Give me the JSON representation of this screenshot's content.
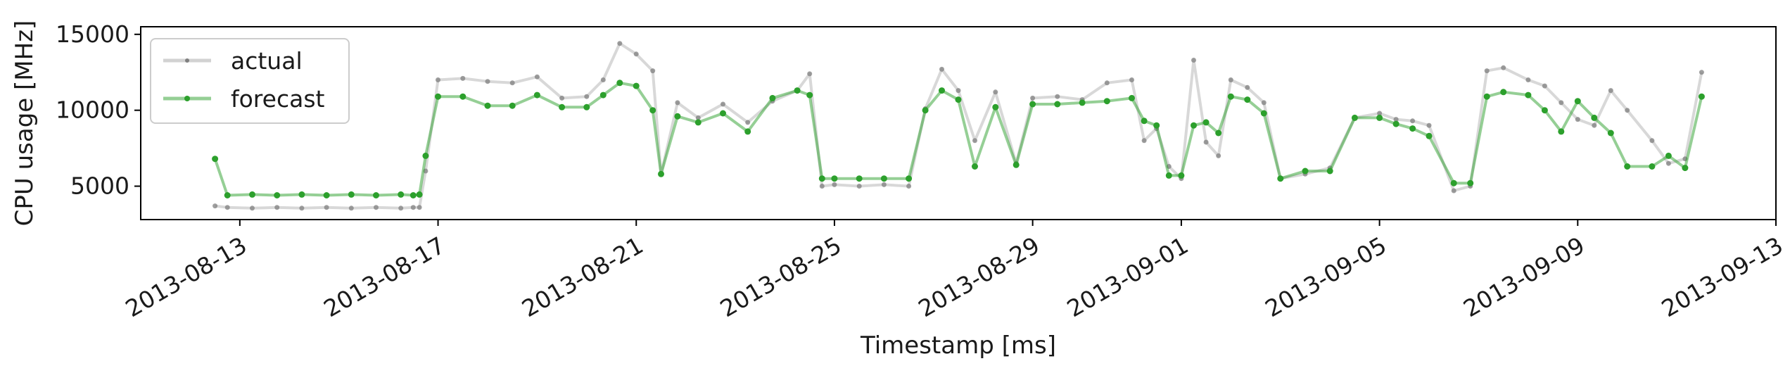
{
  "chart_data": {
    "type": "line",
    "title": "",
    "xlabel": "Timestamp [ms]",
    "ylabel": "CPU usage [MHz]",
    "x_type": "date",
    "xlim": [
      "2013-08-11",
      "2013-09-13"
    ],
    "ylim": [
      2800,
      15500
    ],
    "x_ticks": [
      "2013-08-13",
      "2013-08-17",
      "2013-08-21",
      "2013-08-25",
      "2013-08-29",
      "2013-09-01",
      "2013-09-05",
      "2013-09-09",
      "2013-09-13"
    ],
    "y_ticks": [
      5000,
      10000,
      15000
    ],
    "grid": false,
    "legend_position": "top-left",
    "series": [
      {
        "name": "actual",
        "color": "#7f7f7f",
        "x": [
          "2013-08-12 12:00",
          "2013-08-12 18:00",
          "2013-08-13 06:00",
          "2013-08-13 18:00",
          "2013-08-14 06:00",
          "2013-08-14 18:00",
          "2013-08-15 06:00",
          "2013-08-15 18:00",
          "2013-08-16 06:00",
          "2013-08-16 12:00",
          "2013-08-16 15:00",
          "2013-08-16 18:00",
          "2013-08-17 00:00",
          "2013-08-17 12:00",
          "2013-08-18 00:00",
          "2013-08-18 12:00",
          "2013-08-19 00:00",
          "2013-08-19 12:00",
          "2013-08-20 00:00",
          "2013-08-20 08:00",
          "2013-08-20 16:00",
          "2013-08-21 00:00",
          "2013-08-21 08:00",
          "2013-08-21 12:00",
          "2013-08-21 20:00",
          "2013-08-22 06:00",
          "2013-08-22 18:00",
          "2013-08-23 06:00",
          "2013-08-23 18:00",
          "2013-08-24 06:00",
          "2013-08-24 12:00",
          "2013-08-24 18:00",
          "2013-08-25 00:00",
          "2013-08-25 12:00",
          "2013-08-26 00:00",
          "2013-08-26 12:00",
          "2013-08-26 20:00",
          "2013-08-27 04:00",
          "2013-08-27 12:00",
          "2013-08-27 20:00",
          "2013-08-28 06:00",
          "2013-08-28 16:00",
          "2013-08-29 00:00",
          "2013-08-29 12:00",
          "2013-08-30 00:00",
          "2013-08-30 12:00",
          "2013-08-31 00:00",
          "2013-08-31 06:00",
          "2013-08-31 12:00",
          "2013-08-31 18:00",
          "2013-09-01 00:00",
          "2013-09-01 06:00",
          "2013-09-01 12:00",
          "2013-09-01 18:00",
          "2013-09-02 00:00",
          "2013-09-02 08:00",
          "2013-09-02 16:00",
          "2013-09-03 00:00",
          "2013-09-03 12:00",
          "2013-09-04 00:00",
          "2013-09-04 12:00",
          "2013-09-05 00:00",
          "2013-09-05 08:00",
          "2013-09-05 16:00",
          "2013-09-06 00:00",
          "2013-09-06 12:00",
          "2013-09-06 20:00",
          "2013-09-07 04:00",
          "2013-09-07 12:00",
          "2013-09-08 00:00",
          "2013-09-08 08:00",
          "2013-09-08 16:00",
          "2013-09-09 00:00",
          "2013-09-09 08:00",
          "2013-09-09 16:00",
          "2013-09-10 00:00",
          "2013-09-10 12:00",
          "2013-09-10 20:00",
          "2013-09-11 04:00",
          "2013-09-11 12:00"
        ],
        "y": [
          3700,
          3600,
          3550,
          3600,
          3550,
          3600,
          3550,
          3600,
          3550,
          3600,
          3600,
          6000,
          12000,
          12100,
          11900,
          11800,
          12200,
          10800,
          10900,
          12000,
          14400,
          13700,
          12600,
          5800,
          10500,
          9500,
          10400,
          9200,
          10600,
          11300,
          12400,
          5000,
          5100,
          5000,
          5100,
          5000,
          10100,
          12700,
          11300,
          8000,
          11200,
          6500,
          10800,
          10900,
          10700,
          11800,
          12000,
          8000,
          8800,
          6300,
          5500,
          13300,
          7900,
          7000,
          12000,
          11500,
          10500,
          5500,
          5800,
          6200,
          9500,
          9800,
          9400,
          9300,
          9000,
          4700,
          5000,
          12600,
          12800,
          12000,
          11600,
          10500,
          9400,
          9000,
          11300,
          10000,
          8000,
          6500,
          6800,
          12500
        ]
      },
      {
        "name": "forecast",
        "color": "#2ca02c",
        "x": [
          "2013-08-12 12:00",
          "2013-08-12 18:00",
          "2013-08-13 06:00",
          "2013-08-13 18:00",
          "2013-08-14 06:00",
          "2013-08-14 18:00",
          "2013-08-15 06:00",
          "2013-08-15 18:00",
          "2013-08-16 06:00",
          "2013-08-16 12:00",
          "2013-08-16 15:00",
          "2013-08-16 18:00",
          "2013-08-17 00:00",
          "2013-08-17 12:00",
          "2013-08-18 00:00",
          "2013-08-18 12:00",
          "2013-08-19 00:00",
          "2013-08-19 12:00",
          "2013-08-20 00:00",
          "2013-08-20 08:00",
          "2013-08-20 16:00",
          "2013-08-21 00:00",
          "2013-08-21 08:00",
          "2013-08-21 12:00",
          "2013-08-21 20:00",
          "2013-08-22 06:00",
          "2013-08-22 18:00",
          "2013-08-23 06:00",
          "2013-08-23 18:00",
          "2013-08-24 06:00",
          "2013-08-24 12:00",
          "2013-08-24 18:00",
          "2013-08-25 00:00",
          "2013-08-25 12:00",
          "2013-08-26 00:00",
          "2013-08-26 12:00",
          "2013-08-26 20:00",
          "2013-08-27 04:00",
          "2013-08-27 12:00",
          "2013-08-27 20:00",
          "2013-08-28 06:00",
          "2013-08-28 16:00",
          "2013-08-29 00:00",
          "2013-08-29 12:00",
          "2013-08-30 00:00",
          "2013-08-30 12:00",
          "2013-08-31 00:00",
          "2013-08-31 06:00",
          "2013-08-31 12:00",
          "2013-08-31 18:00",
          "2013-09-01 00:00",
          "2013-09-01 06:00",
          "2013-09-01 12:00",
          "2013-09-01 18:00",
          "2013-09-02 00:00",
          "2013-09-02 08:00",
          "2013-09-02 16:00",
          "2013-09-03 00:00",
          "2013-09-03 12:00",
          "2013-09-04 00:00",
          "2013-09-04 12:00",
          "2013-09-05 00:00",
          "2013-09-05 08:00",
          "2013-09-05 16:00",
          "2013-09-06 00:00",
          "2013-09-06 12:00",
          "2013-09-06 20:00",
          "2013-09-07 04:00",
          "2013-09-07 12:00",
          "2013-09-08 00:00",
          "2013-09-08 08:00",
          "2013-09-08 16:00",
          "2013-09-09 00:00",
          "2013-09-09 08:00",
          "2013-09-09 16:00",
          "2013-09-10 00:00",
          "2013-09-10 12:00",
          "2013-09-10 20:00",
          "2013-09-11 04:00",
          "2013-09-11 12:00"
        ],
        "y": [
          6800,
          4400,
          4450,
          4400,
          4450,
          4400,
          4450,
          4400,
          4450,
          4400,
          4450,
          7000,
          10900,
          10900,
          10300,
          10300,
          11000,
          10200,
          10200,
          11000,
          11800,
          11600,
          10000,
          5800,
          9600,
          9200,
          9800,
          8600,
          10800,
          11300,
          11000,
          5500,
          5500,
          5500,
          5500,
          5500,
          10000,
          11300,
          10700,
          6300,
          10200,
          6400,
          10400,
          10400,
          10500,
          10600,
          10800,
          9300,
          9000,
          5700,
          5700,
          9000,
          9200,
          8500,
          10900,
          10700,
          9800,
          5500,
          6000,
          6000,
          9500,
          9500,
          9100,
          8800,
          8300,
          5200,
          5200,
          10900,
          11200,
          11000,
          10000,
          8600,
          10600,
          9500,
          8500,
          6300,
          6300,
          7000,
          6200,
          10900
        ]
      }
    ]
  }
}
